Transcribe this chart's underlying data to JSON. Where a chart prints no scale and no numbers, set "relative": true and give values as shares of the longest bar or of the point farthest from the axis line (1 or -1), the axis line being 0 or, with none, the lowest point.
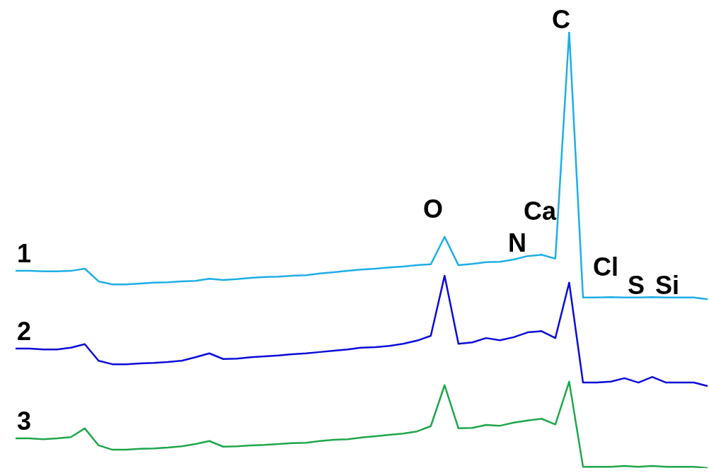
{
  "chart_data": {
    "type": "line",
    "relative": true,
    "marker": "none",
    "legend": false,
    "categories": [
      null,
      null,
      null,
      null,
      null,
      null,
      null,
      null,
      null,
      null,
      null,
      null,
      null,
      null,
      null,
      null,
      null,
      null,
      null,
      null,
      null,
      null,
      null,
      null,
      null,
      null,
      null,
      null,
      null,
      null,
      null,
      null,
      null,
      null,
      null,
      null,
      null,
      null,
      null,
      null,
      null,
      null,
      null,
      null,
      null,
      null,
      null,
      null,
      null,
      null,
      null
    ],
    "series": [
      {
        "name": "1",
        "color": "#1eaee6",
        "values": [
          0.452,
          0.452,
          0.451,
          0.451,
          0.452,
          0.457,
          0.428,
          0.421,
          0.421,
          0.423,
          0.425,
          0.426,
          0.428,
          0.429,
          0.434,
          0.431,
          0.433,
          0.436,
          0.438,
          0.439,
          0.441,
          0.442,
          0.446,
          0.449,
          0.452,
          0.455,
          0.457,
          0.46,
          0.462,
          0.465,
          0.467,
          0.53,
          0.465,
          0.468,
          0.472,
          0.473,
          0.478,
          0.486,
          0.489,
          0.48,
          1,
          0.391,
          0.391,
          0.392,
          0.391,
          0.391,
          0.392,
          0.391,
          0.391,
          0.391,
          0.387
        ]
      },
      {
        "name": "2",
        "color": "#0a0ad8",
        "values": [
          0.274,
          0.274,
          0.272,
          0.272,
          0.276,
          0.284,
          0.246,
          0.238,
          0.238,
          0.24,
          0.241,
          0.243,
          0.246,
          0.254,
          0.263,
          0.25,
          0.251,
          0.254,
          0.256,
          0.258,
          0.261,
          0.263,
          0.266,
          0.269,
          0.272,
          0.276,
          0.277,
          0.28,
          0.285,
          0.292,
          0.303,
          0.441,
          0.285,
          0.288,
          0.298,
          0.293,
          0.3,
          0.311,
          0.314,
          0.298,
          0.425,
          0.196,
          0.196,
          0.198,
          0.206,
          0.196,
          0.209,
          0.196,
          0.196,
          0.196,
          0.188
        ]
      },
      {
        "name": "3",
        "color": "#1fa64b",
        "values": [
          0.068,
          0.068,
          0.066,
          0.068,
          0.071,
          0.091,
          0.052,
          0.042,
          0.042,
          0.044,
          0.045,
          0.047,
          0.05,
          0.055,
          0.062,
          0.049,
          0.05,
          0.052,
          0.053,
          0.055,
          0.057,
          0.058,
          0.062,
          0.065,
          0.066,
          0.07,
          0.073,
          0.076,
          0.079,
          0.084,
          0.096,
          0.19,
          0.091,
          0.092,
          0.099,
          0.097,
          0.104,
          0.109,
          0.113,
          0.1,
          0.198,
          0.003,
          0.003,
          0.003,
          0.005,
          0.003,
          0.005,
          0.003,
          0.003,
          0.003,
          0
        ]
      }
    ],
    "annotations": [
      "O",
      "N",
      "Ca",
      "C",
      "Cl",
      "S",
      "Si"
    ]
  }
}
